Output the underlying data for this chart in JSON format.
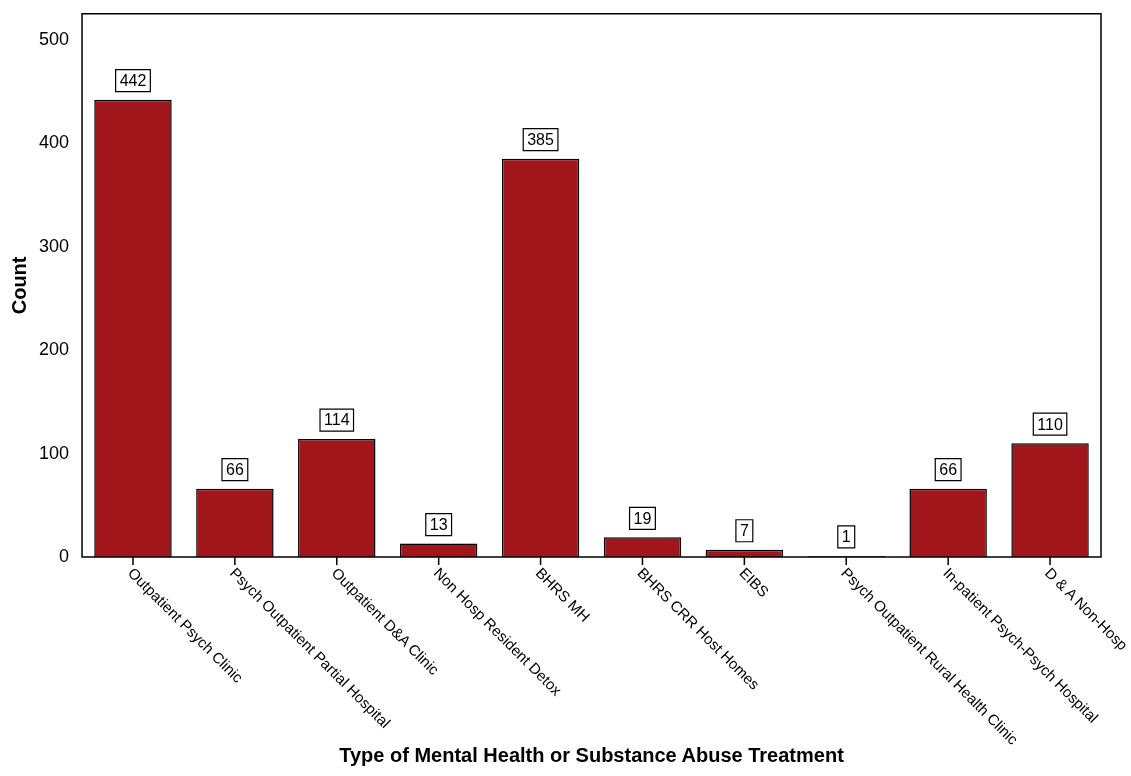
{
  "chart_data": {
    "type": "bar",
    "xlabel": "Type of Mental Health or Substance Abuse Treatment",
    "ylabel": "Count",
    "categories": [
      "Outpatient Psych Clinic",
      "Psych Outpatient Partial Hospital",
      "Outpatient D&A Clinic",
      "Non Hosp Resident Detox",
      "BHRS MH",
      "BHRS CRR Host Homes",
      "EIBS",
      "Psych Outpatient Rural Health Clinic",
      "In-patient Psych-Psych Hospital",
      "D & A Non-Hosp"
    ],
    "values": [
      442,
      66,
      114,
      13,
      385,
      19,
      7,
      1,
      66,
      110
    ],
    "color": "#a0161b",
    "ylim": [
      0,
      525
    ],
    "yticks": [
      0,
      100,
      200,
      300,
      400,
      500
    ],
    "grid": false,
    "data_labels": true,
    "legend": false
  }
}
